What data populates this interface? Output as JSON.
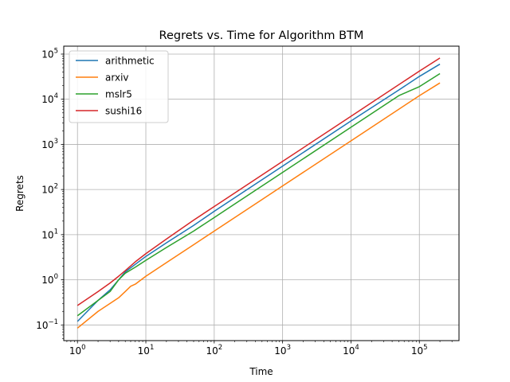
{
  "chart_data": {
    "type": "line",
    "title": "Regrets vs. Time for Algorithm BTM",
    "xlabel": "Time",
    "ylabel": "Regrets",
    "xscale": "log",
    "yscale": "log",
    "xlim": [
      0.63,
      380000
    ],
    "ylim": [
      0.045,
      150000
    ],
    "x_ticks": [
      {
        "value": 1,
        "base": "10",
        "exp": "0"
      },
      {
        "value": 10,
        "base": "10",
        "exp": "1"
      },
      {
        "value": 100,
        "base": "10",
        "exp": "2"
      },
      {
        "value": 1000,
        "base": "10",
        "exp": "3"
      },
      {
        "value": 10000,
        "base": "10",
        "exp": "4"
      },
      {
        "value": 100000,
        "base": "10",
        "exp": "5"
      }
    ],
    "y_ticks": [
      {
        "value": 0.1,
        "base": "10",
        "exp": "−1"
      },
      {
        "value": 1,
        "base": "10",
        "exp": "0"
      },
      {
        "value": 10,
        "base": "10",
        "exp": "1"
      },
      {
        "value": 100,
        "base": "10",
        "exp": "2"
      },
      {
        "value": 1000,
        "base": "10",
        "exp": "3"
      },
      {
        "value": 10000,
        "base": "10",
        "exp": "4"
      },
      {
        "value": 100000,
        "base": "10",
        "exp": "5"
      }
    ],
    "grid": true,
    "legend_position": "top-left",
    "series": [
      {
        "name": "arithmetic",
        "color": "#1f77b4",
        "points": [
          [
            1,
            0.12
          ],
          [
            2,
            0.35
          ],
          [
            3,
            0.6
          ],
          [
            4,
            1.0
          ],
          [
            5,
            1.5
          ],
          [
            7,
            2.2
          ],
          [
            10,
            3.3
          ],
          [
            20,
            6.6
          ],
          [
            50,
            16
          ],
          [
            100,
            33
          ],
          [
            1000,
            330
          ],
          [
            10000,
            3300
          ],
          [
            50000,
            16000
          ],
          [
            100000,
            32000
          ],
          [
            200000,
            60000
          ]
        ]
      },
      {
        "name": "arxiv",
        "color": "#ff7f0e",
        "points": [
          [
            1,
            0.085
          ],
          [
            2,
            0.2
          ],
          [
            3,
            0.3
          ],
          [
            4,
            0.4
          ],
          [
            5,
            0.55
          ],
          [
            6,
            0.72
          ],
          [
            7,
            0.8
          ],
          [
            10,
            1.2
          ],
          [
            20,
            2.4
          ],
          [
            50,
            6
          ],
          [
            100,
            12
          ],
          [
            1000,
            120
          ],
          [
            10000,
            1200
          ],
          [
            100000,
            12000
          ],
          [
            200000,
            23000
          ]
        ]
      },
      {
        "name": "mslr5",
        "color": "#2ca02c",
        "points": [
          [
            1,
            0.16
          ],
          [
            2,
            0.35
          ],
          [
            3,
            0.55
          ],
          [
            4,
            1.0
          ],
          [
            5,
            1.4
          ],
          [
            7,
            1.9
          ],
          [
            10,
            2.7
          ],
          [
            20,
            5.2
          ],
          [
            50,
            12
          ],
          [
            100,
            24
          ],
          [
            1000,
            240
          ],
          [
            10000,
            2400
          ],
          [
            50000,
            12000
          ],
          [
            70000,
            15000
          ],
          [
            100000,
            19000
          ],
          [
            200000,
            37000
          ]
        ]
      },
      {
        "name": "sushi16",
        "color": "#d62728",
        "points": [
          [
            1,
            0.27
          ],
          [
            2,
            0.55
          ],
          [
            3,
            0.85
          ],
          [
            4,
            1.2
          ],
          [
            5,
            1.6
          ],
          [
            7,
            2.5
          ],
          [
            10,
            3.8
          ],
          [
            20,
            8
          ],
          [
            50,
            21
          ],
          [
            100,
            42
          ],
          [
            1000,
            420
          ],
          [
            10000,
            4200
          ],
          [
            100000,
            42000
          ],
          [
            200000,
            82000
          ]
        ]
      }
    ]
  }
}
